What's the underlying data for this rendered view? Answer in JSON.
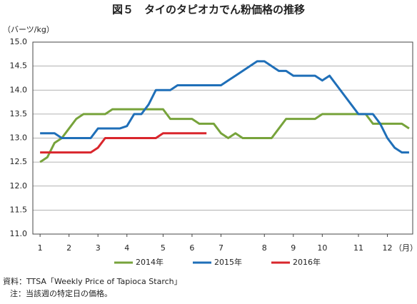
{
  "chart_data": {
    "type": "line",
    "title": "図５　タイのタピオカでん粉価格の推移",
    "y_unit": "（バーツ/kg）",
    "x_unit": "（月）",
    "x": [
      1,
      2,
      3,
      4,
      5,
      6,
      7,
      8,
      9,
      10,
      11,
      12,
      13,
      14,
      15,
      16,
      17,
      18,
      19,
      20,
      21,
      22,
      23,
      24,
      25,
      26,
      27,
      28,
      29,
      30,
      31,
      32,
      33,
      34,
      35,
      36,
      37,
      38,
      39,
      40,
      41,
      42,
      43,
      44,
      45,
      46,
      47,
      48,
      49,
      50,
      51,
      52
    ],
    "xlim": [
      0,
      52.5
    ],
    "xticks": [
      {
        "value": 1,
        "label": "1"
      },
      {
        "value": 5,
        "label": "2"
      },
      {
        "value": 9,
        "label": "3"
      },
      {
        "value": 13,
        "label": "4"
      },
      {
        "value": 18,
        "label": "5"
      },
      {
        "value": 22,
        "label": "6"
      },
      {
        "value": 26,
        "label": "7"
      },
      {
        "value": 32,
        "label": "8"
      },
      {
        "value": 36,
        "label": "9"
      },
      {
        "value": 40,
        "label": "10"
      },
      {
        "value": 45,
        "label": "11"
      },
      {
        "value": 49,
        "label": "12"
      }
    ],
    "ylim": [
      11,
      15
    ],
    "yticks": [
      {
        "value": 11,
        "label": "11.0"
      },
      {
        "value": 11.5,
        "label": "11.5"
      },
      {
        "value": 12,
        "label": "12.0"
      },
      {
        "value": 12.5,
        "label": "12.5"
      },
      {
        "value": 13,
        "label": "13.0"
      },
      {
        "value": 13.5,
        "label": "13.5"
      },
      {
        "value": 14,
        "label": "14.0"
      },
      {
        "value": 14.5,
        "label": "14.5"
      },
      {
        "value": 15,
        "label": "15.0"
      }
    ],
    "grid": true,
    "series": [
      {
        "name": "2014年",
        "color": "#77a33b",
        "values": [
          12.5,
          12.6,
          12.9,
          13.0,
          13.2,
          13.4,
          13.5,
          13.5,
          13.5,
          13.5,
          13.6,
          13.6,
          13.6,
          13.6,
          13.6,
          13.6,
          13.6,
          13.6,
          13.4,
          13.4,
          13.4,
          13.4,
          13.3,
          13.3,
          13.3,
          13.1,
          13.0,
          13.1,
          13.0,
          13.0,
          13.0,
          13.0,
          13.0,
          13.2,
          13.4,
          13.4,
          13.4,
          13.4,
          13.4,
          13.5,
          13.5,
          13.5,
          13.5,
          13.5,
          13.5,
          13.5,
          13.3,
          13.3,
          13.3,
          13.3,
          13.3,
          13.2
        ]
      },
      {
        "name": "2015年",
        "color": "#1f6fb8",
        "values": [
          13.1,
          13.1,
          13.1,
          13.0,
          13.0,
          13.0,
          13.0,
          13.0,
          13.2,
          13.2,
          13.2,
          13.2,
          13.25,
          13.5,
          13.5,
          13.7,
          14.0,
          14.0,
          14.0,
          14.1,
          14.1,
          14.1,
          14.1,
          14.1,
          14.1,
          14.1,
          14.2,
          14.3,
          14.4,
          14.5,
          14.6,
          14.6,
          14.5,
          14.4,
          14.4,
          14.3,
          14.3,
          14.3,
          14.3,
          14.2,
          14.3,
          14.1,
          13.9,
          13.7,
          13.5,
          13.5,
          13.5,
          13.3,
          13.0,
          12.8,
          12.7,
          12.7
        ]
      },
      {
        "name": "2016年",
        "color": "#d9262c",
        "values": [
          12.7,
          12.7,
          12.7,
          12.7,
          12.7,
          12.7,
          12.7,
          12.7,
          12.8,
          13.0,
          13.0,
          13.0,
          13.0,
          13.0,
          13.0,
          13.0,
          13.0,
          13.1,
          13.1,
          13.1,
          13.1,
          13.1,
          13.1,
          13.1,
          null,
          null,
          null,
          null,
          null,
          null,
          null,
          null,
          null,
          null,
          null,
          null,
          null,
          null,
          null,
          null,
          null,
          null,
          null,
          null,
          null,
          null,
          null,
          null,
          null,
          null,
          null,
          null
        ]
      }
    ],
    "legend": "bottom",
    "source": "資料：TTSA「Weekly Price of Tapioca Starch」",
    "note": "注：当該週の特定日の価格。"
  }
}
